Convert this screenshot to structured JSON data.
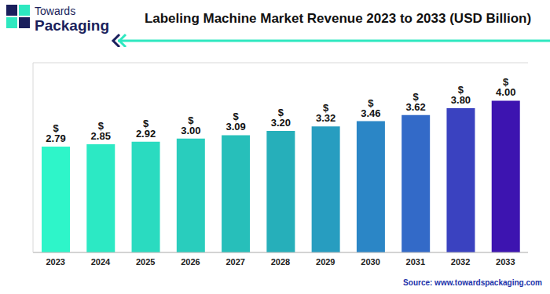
{
  "chart_data": {
    "type": "bar",
    "title": "Labeling Machine Market Revenue 2023 to 2033 (USD Billion)",
    "annotations": [
      "Towards",
      "Packaging",
      "Source: www.towardspackaging.com"
    ],
    "categories": [
      "2023",
      "2024",
      "2025",
      "2026",
      "2027",
      "2028",
      "2029",
      "2030",
      "2031",
      "2032",
      "2033"
    ],
    "values": [
      2.79,
      2.85,
      2.92,
      3.0,
      3.09,
      3.2,
      3.32,
      3.46,
      3.62,
      3.8,
      4.0
    ],
    "value_labels": [
      "$ 2.79",
      "$ 2.85",
      "$ 2.92",
      "$ 3.00",
      "$ 3.09",
      "$ 3.20",
      "$ 3.32",
      "$ 3.46",
      "$ 3.62",
      "$ 3.80",
      "$ 4.00"
    ],
    "colors": [
      "#2ef5c9",
      "#2ce9c4",
      "#2adbc0",
      "#29cdbd",
      "#27bfba",
      "#26afba",
      "#279dc0",
      "#2b86c6",
      "#336ac8",
      "#3a42c0",
      "#3d14b0"
    ],
    "ylim": [
      0,
      5
    ],
    "yticks": [
      0,
      0.5,
      1,
      1.5,
      2,
      2.5,
      3,
      3.5,
      4,
      4.5,
      5
    ],
    "grid": true,
    "data_labels": true,
    "tick_labels": "x"
  }
}
